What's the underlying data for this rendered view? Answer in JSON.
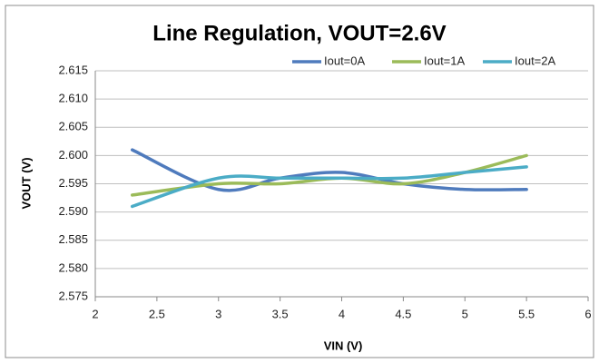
{
  "chart_data": {
    "type": "line",
    "title": "Line Regulation, VOUT=2.6V",
    "x_label": "VIN (V)",
    "y_label": "VOUT (V)",
    "x": [
      2.3,
      3,
      3.5,
      4,
      4.5,
      5,
      5.5
    ],
    "series": [
      {
        "name": "Iout=0A",
        "color": "#4f7bbd",
        "values": [
          2.601,
          2.594,
          2.596,
          2.597,
          2.595,
          2.594,
          2.594
        ]
      },
      {
        "name": "Iout=1A",
        "color": "#9bbb59",
        "values": [
          2.593,
          2.595,
          2.595,
          2.596,
          2.595,
          2.597,
          2.6
        ]
      },
      {
        "name": "Iout=2A",
        "color": "#4bacc6",
        "values": [
          2.591,
          2.596,
          2.596,
          2.596,
          2.596,
          2.597,
          2.598
        ]
      }
    ],
    "xlim": [
      2,
      6
    ],
    "xticks": [
      2,
      2.5,
      3,
      3.5,
      4,
      4.5,
      5,
      5.5,
      6
    ],
    "ylim": [
      2.575,
      2.615
    ],
    "yticks": [
      2.575,
      {
        "value": 2.58,
        "label": "2.580"
      },
      2.585,
      {
        "value": 2.59,
        "label": "2.590"
      },
      2.595,
      {
        "value": 2.6,
        "label": "2.600"
      },
      2.605,
      {
        "value": 2.61,
        "label": "2.610"
      },
      2.615
    ],
    "grid": true,
    "legend": "top-right",
    "smooth": true
  }
}
